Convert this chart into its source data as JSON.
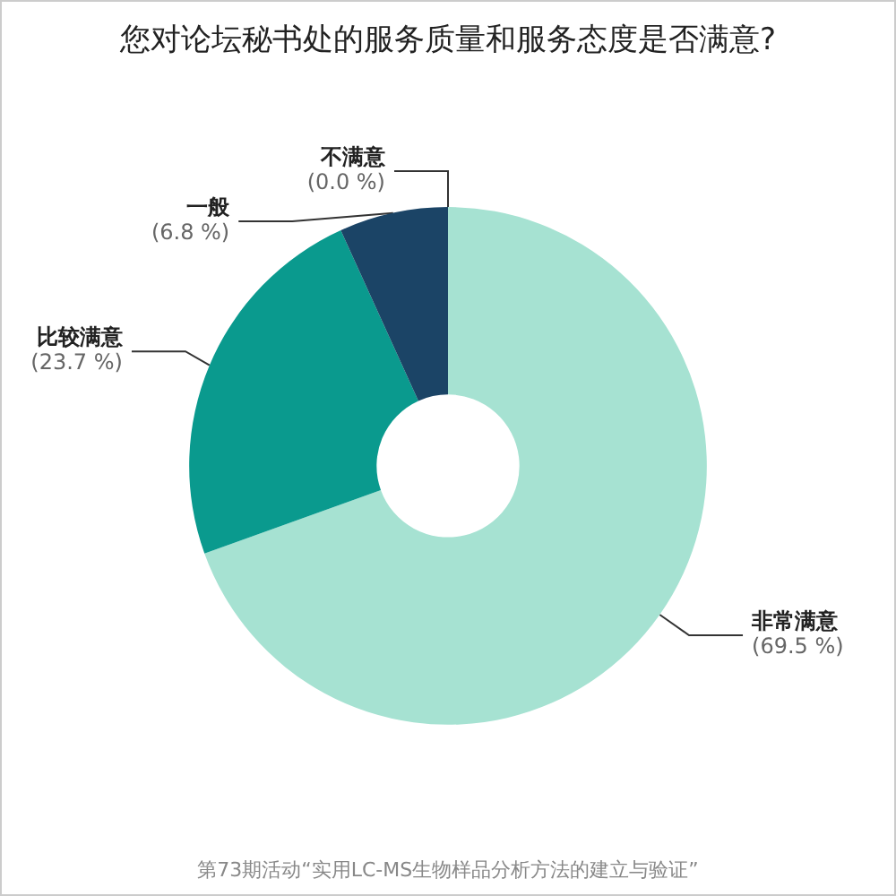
{
  "chart_data": {
    "type": "donut",
    "title": "您对论坛秘书处的服务质量和服务态度是否满意?",
    "categories": [
      "非常满意",
      "比较满意",
      "一般",
      "不满意"
    ],
    "values": [
      69.5,
      23.7,
      6.8,
      0.0
    ],
    "value_labels": [
      "(69.5 %)",
      "(23.7 %)",
      "(6.8 %)",
      "(0.0 %)"
    ],
    "colors": [
      "#a6e2d2",
      "#0a9a8e",
      "#1b4466",
      "#0d2a40"
    ],
    "legend": false,
    "annotations": [
      "第73期活动“实用LC-MS生物样品分析方法的建立与验证”"
    ]
  }
}
